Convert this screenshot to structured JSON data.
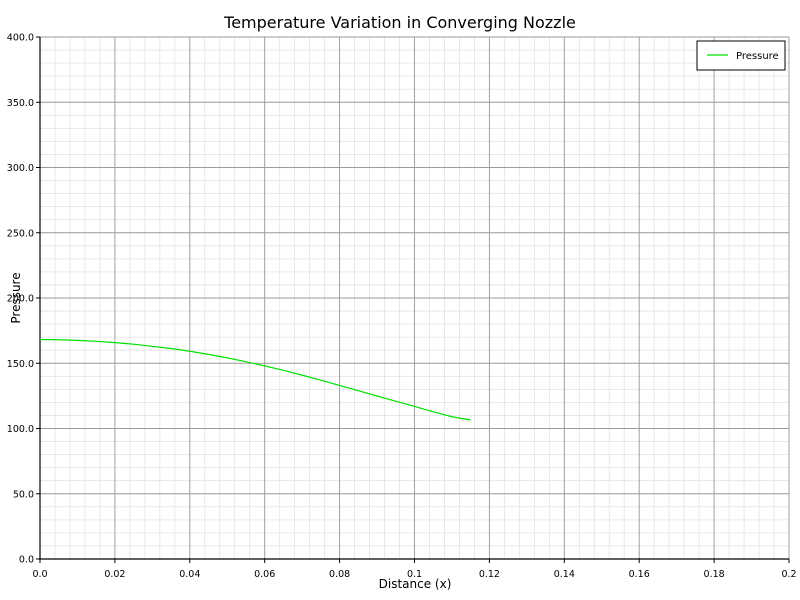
{
  "chart_data": {
    "type": "line",
    "title": "Temperature Variation in Converging Nozzle",
    "xlabel": "Distance (x)",
    "ylabel": "Pressure",
    "xlim": [
      0,
      0.2
    ],
    "ylim": [
      0,
      400
    ],
    "x_ticks": [
      "0.0",
      "0.02",
      "0.04",
      "0.06",
      "0.08",
      "0.1",
      "0.12",
      "0.14",
      "0.16",
      "0.18",
      "0.2"
    ],
    "y_ticks": [
      "0.0",
      "50.0",
      "100.0",
      "150.0",
      "200.0",
      "250.0",
      "300.0",
      "350.0",
      "400.0"
    ],
    "grid": true,
    "legend_position": "top-right",
    "series": [
      {
        "name": "Pressure",
        "color": "#00e000",
        "x": [
          0.0,
          0.005,
          0.01,
          0.015,
          0.02,
          0.025,
          0.03,
          0.035,
          0.04,
          0.045,
          0.05,
          0.055,
          0.06,
          0.065,
          0.07,
          0.075,
          0.08,
          0.085,
          0.09,
          0.095,
          0.1,
          0.105,
          0.11,
          0.115
        ],
        "y": [
          168.2,
          168.0,
          167.5,
          166.8,
          165.8,
          164.6,
          163.0,
          161.3,
          159.2,
          156.8,
          154.1,
          151.2,
          148.0,
          144.6,
          140.9,
          137.0,
          133.0,
          129.0,
          124.9,
          120.9,
          116.9,
          112.9,
          109.0,
          106.5
        ]
      }
    ]
  }
}
